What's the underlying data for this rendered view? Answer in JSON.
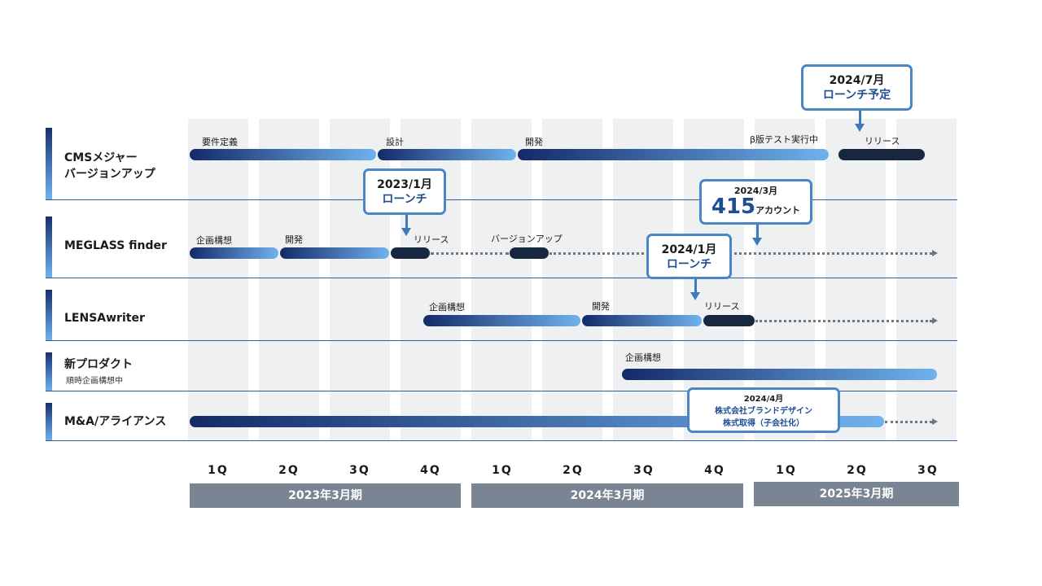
{
  "rows": [
    {
      "label_line1": "CMSメジャー",
      "label_line2": "バージョンアップ"
    },
    {
      "label": "MEGLASS finder"
    },
    {
      "label": "LENSAwriter"
    },
    {
      "label": "新プロダクト",
      "sub": "順時企画構想中"
    },
    {
      "label": "M&A/アライアンス"
    }
  ],
  "phases": {
    "cms": [
      "要件定義",
      "設計",
      "開発",
      "β版テスト実行中",
      "リリース"
    ],
    "meglass": [
      "企画構想",
      "開発",
      "リリース",
      "バージョンアップ"
    ],
    "lensa": [
      "企画構想",
      "開発",
      "リリース"
    ],
    "new": [
      "企画構想"
    ]
  },
  "callouts": {
    "cms_2024_7": {
      "line1": "2024/7月",
      "line2": "ローンチ予定"
    },
    "meglass_2023_1": {
      "line1": "2023/1月",
      "line2": "ローンチ"
    },
    "meglass_accounts": {
      "date": "2024/3月",
      "number": "415",
      "unit": "アカウント"
    },
    "lensa_2024_1": {
      "line1": "2024/1月",
      "line2": "ローンチ"
    },
    "ma_2024_4": {
      "date": "2024/4月",
      "line2": "株式会社ブランドデザイン",
      "line3": "株式取得（子会社化）"
    }
  },
  "quarters": [
    "1Q",
    "2Q",
    "3Q",
    "4Q",
    "1Q",
    "2Q",
    "3Q",
    "4Q",
    "1Q",
    "2Q",
    "3Q"
  ],
  "fiscal_years": [
    "2023年3月期",
    "2024年3月期",
    "2025年3月期"
  ],
  "colors": {
    "bar_start": "#142a68",
    "bar_end": "#6fb2ee",
    "release_bar": "#17273f",
    "callout_border": "#4a86c5",
    "fiscal_year_bg": "#7a8594"
  }
}
